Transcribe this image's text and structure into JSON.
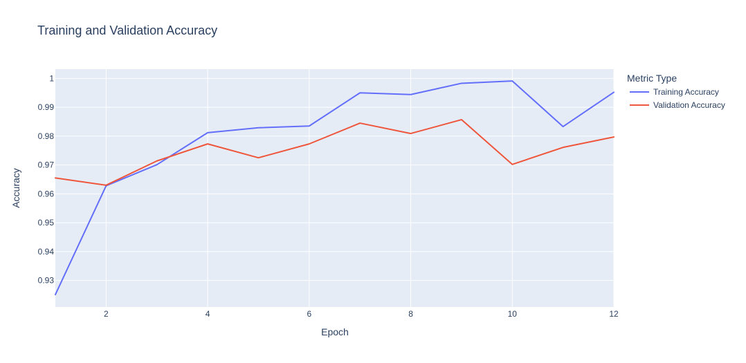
{
  "chart_data": {
    "type": "line",
    "title": "Training and Validation Accuracy",
    "xlabel": "Epoch",
    "ylabel": "Accuracy",
    "xlim": [
      1,
      12
    ],
    "ylim": [
      0.9208,
      1.0032
    ],
    "xticks": [
      2,
      4,
      6,
      8,
      10,
      12
    ],
    "yticks": [
      0.93,
      0.94,
      0.95,
      0.96,
      0.97,
      0.98,
      0.99,
      1
    ],
    "ytick_labels": [
      "0.93",
      "0.94",
      "0.95",
      "0.96",
      "0.97",
      "0.98",
      "0.99",
      "1"
    ],
    "grid": true,
    "legend": {
      "title": "Metric Type",
      "placement": "right"
    },
    "x": [
      1,
      2,
      3,
      4,
      5,
      6,
      7,
      8,
      9,
      10,
      11,
      12
    ],
    "series": [
      {
        "name": "Training Accuracy",
        "color": "#636efa",
        "values": [
          0.9251,
          0.9628,
          0.9701,
          0.9812,
          0.9829,
          0.9835,
          0.995,
          0.9944,
          0.9983,
          0.9991,
          0.9833,
          0.9952
        ]
      },
      {
        "name": "Validation Accuracy",
        "color": "#ef553b",
        "values": [
          0.9655,
          0.963,
          0.9714,
          0.9773,
          0.9725,
          0.9773,
          0.9845,
          0.9809,
          0.9857,
          0.9702,
          0.9761,
          0.9797
        ]
      }
    ]
  }
}
